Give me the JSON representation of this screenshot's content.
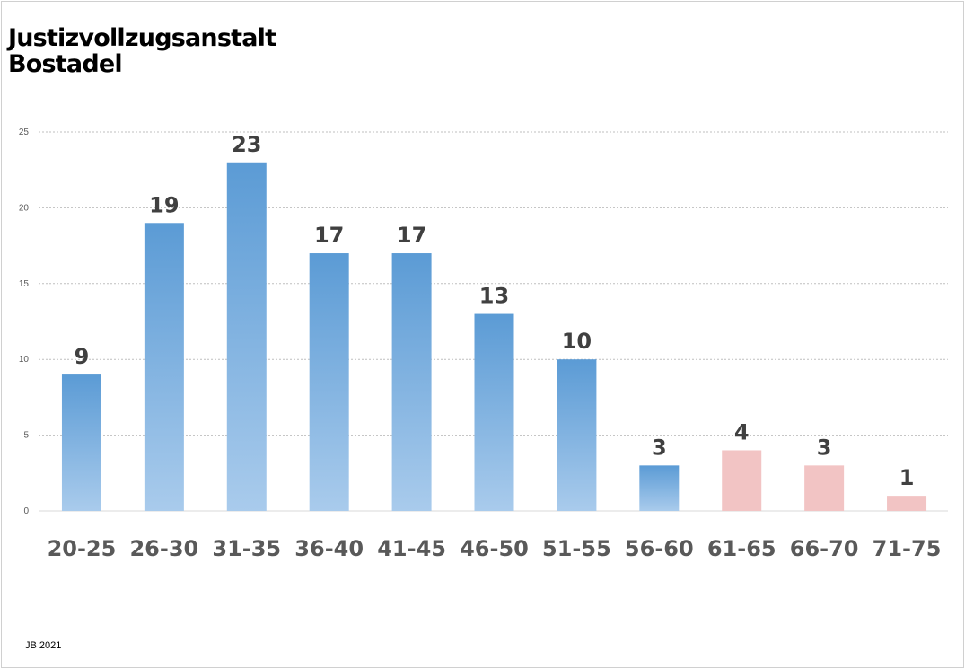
{
  "title_lines": [
    "Justizvollzugsanstalt",
    "Bostadel"
  ],
  "footer": "JB 2021",
  "colors": {
    "blue_top": "#5b9bd5",
    "blue_bottom": "#a9cbec",
    "pink": "#f2c4c4",
    "grid": "#bfbfbf"
  },
  "chart_data": {
    "type": "bar",
    "title": "Justizvollzugsanstalt Bostadel",
    "xlabel": "",
    "ylabel": "",
    "categories": [
      "20-25",
      "26-30",
      "31-35",
      "36-40",
      "41-45",
      "46-50",
      "51-55",
      "56-60",
      "61-65",
      "66-70",
      "71-75"
    ],
    "values": [
      9,
      19,
      23,
      17,
      17,
      13,
      10,
      3,
      4,
      3,
      1
    ],
    "bar_colors": [
      "blue",
      "blue",
      "blue",
      "blue",
      "blue",
      "blue",
      "blue",
      "blue",
      "pink",
      "pink",
      "pink"
    ],
    "ylim": [
      0,
      25
    ],
    "yticks": [
      0,
      5,
      10,
      15,
      20,
      25
    ],
    "grid": true,
    "legend": "none",
    "data_labels": true
  }
}
